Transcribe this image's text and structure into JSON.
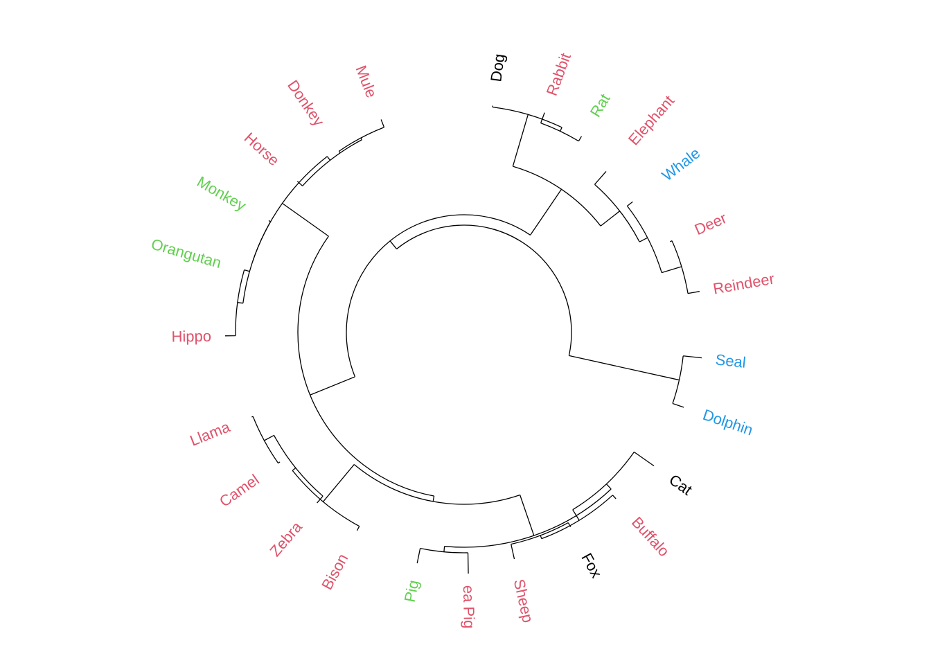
{
  "colors": {
    "black": "#000000",
    "red": "#DF536B",
    "green": "#61D04F",
    "blue": "#2297E6"
  },
  "leaves": [
    {
      "label": "Dog",
      "color": "#000000"
    },
    {
      "label": "Rabbit",
      "color": "#DF536B"
    },
    {
      "label": "Rat",
      "color": "#61D04F"
    },
    {
      "label": "Elephant",
      "color": "#DF536B"
    },
    {
      "label": "Whale",
      "color": "#2297E6"
    },
    {
      "label": "Deer",
      "color": "#DF536B"
    },
    {
      "label": "Reindeer",
      "color": "#DF536B"
    },
    {
      "label": "Seal",
      "color": "#2297E6"
    },
    {
      "label": "Dolphin",
      "color": "#2297E6"
    },
    {
      "label": "Cat",
      "color": "#000000"
    },
    {
      "label": "Buffalo",
      "color": "#DF536B"
    },
    {
      "label": "Fox",
      "color": "#000000"
    },
    {
      "label": "Sheep",
      "color": "#DF536B"
    },
    {
      "label": "ea Pig",
      "color": "#DF536B"
    },
    {
      "label": "Pig",
      "color": "#61D04F"
    },
    {
      "label": "Bison",
      "color": "#DF536B"
    },
    {
      "label": "Zebra",
      "color": "#DF536B"
    },
    {
      "label": "Camel",
      "color": "#DF536B"
    },
    {
      "label": "Llama",
      "color": "#DF536B"
    },
    {
      "label": "Hippo",
      "color": "#DF536B"
    },
    {
      "label": "Orangutan",
      "color": "#61D04F"
    },
    {
      "label": "Monkey",
      "color": "#61D04F"
    },
    {
      "label": "Horse",
      "color": "#DF536B"
    },
    {
      "label": "Donkey",
      "color": "#DF536B"
    },
    {
      "label": "Mule",
      "color": "#DF536B"
    }
  ]
}
